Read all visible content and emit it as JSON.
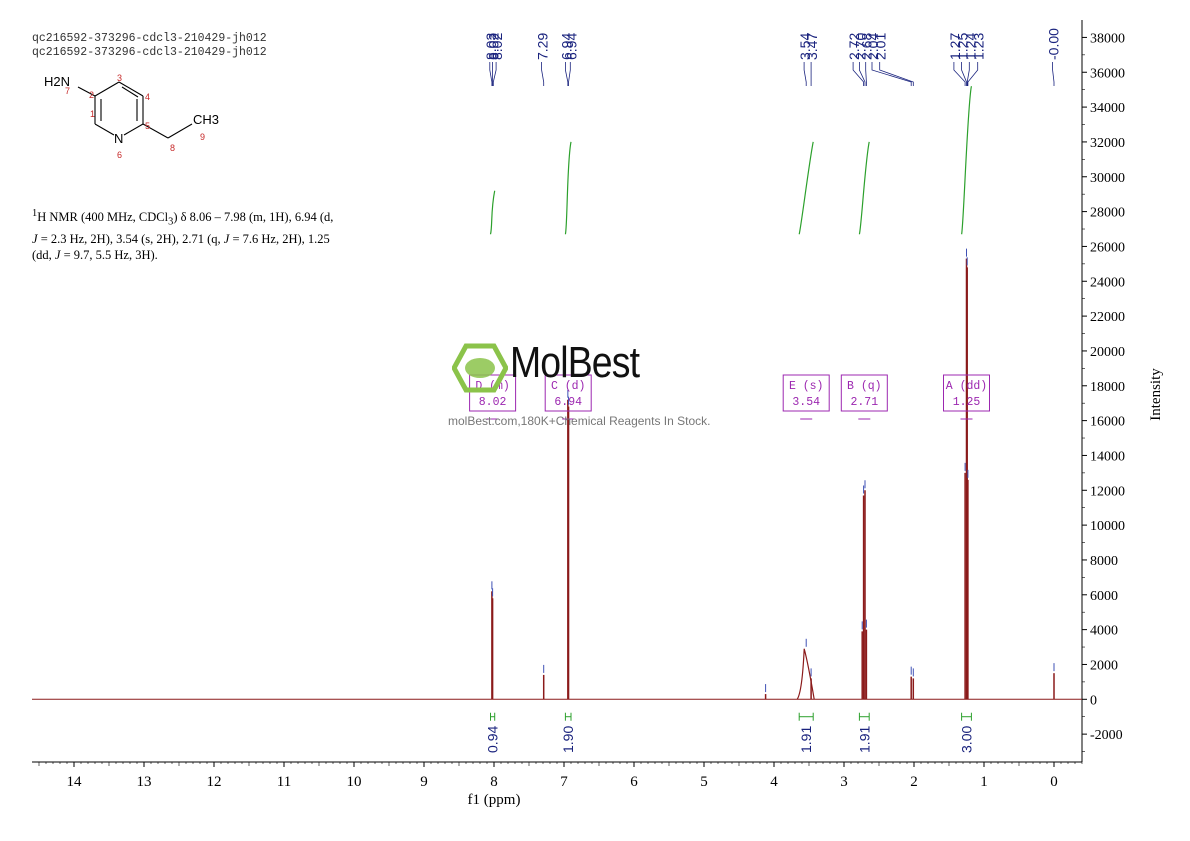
{
  "header": {
    "line1": "qc216592-373296-cdcl3-210429-jh012",
    "line2": "qc216592-373296-cdcl3-210429-jh012"
  },
  "structure": {
    "group": "H2N",
    "methyl": "CH3",
    "ring_n": "N",
    "atom_numbers": [
      "1",
      "2",
      "3",
      "4",
      "5",
      "6",
      "7",
      "8",
      "9"
    ]
  },
  "description": {
    "line1_pre": "H NMR (400 MHz, CDCl",
    "line1_sup": "1",
    "line1_sub": "3",
    "line1_post": ") δ 8.06 – 7.98 (m, 1H), 6.94 (d,",
    "line2_j": "J",
    "line2": " = 2.3 Hz, 2H), 3.54 (s, 2H), 2.71 (q, ",
    "line2_j2": "J",
    "line2_b": " = 7.6 Hz, 2H), 1.25",
    "line3_a": "(dd, ",
    "line3_j": "J",
    "line3_b": " = 9.7, 5.5 Hz, 3H)."
  },
  "watermark": {
    "brand": "MolBest",
    "tagline": "molBest.com,180K+Chemical Reagents In Stock."
  },
  "colors": {
    "spectrum": "#8b1a1a",
    "integral": "#2ca02c",
    "peak_label": "#1a237e",
    "multiplet_box": "#9c27b0",
    "logo_green": "#8bc34a"
  },
  "chart_data": {
    "type": "line",
    "xlabel": "f1 (ppm)",
    "ylabel": "Intensity",
    "xlim": [
      14.6,
      -0.4
    ],
    "ylim": [
      -3600,
      39000
    ],
    "x_ticks": [
      14,
      13,
      12,
      11,
      10,
      9,
      8,
      7,
      6,
      5,
      4,
      3,
      2,
      1,
      0
    ],
    "y_ticks": [
      -2000,
      0,
      2000,
      4000,
      6000,
      8000,
      10000,
      12000,
      14000,
      16000,
      18000,
      20000,
      22000,
      24000,
      26000,
      28000,
      30000,
      32000,
      34000,
      36000,
      38000
    ],
    "peaks": [
      {
        "x": 8.03,
        "y": 6200
      },
      {
        "x": 8.02,
        "y": 5800
      },
      {
        "x": 7.29,
        "y": 1400
      },
      {
        "x": 6.945,
        "y": 17200
      },
      {
        "x": 6.935,
        "y": 16800
      },
      {
        "x": 4.12,
        "y": 300
      },
      {
        "x": 3.54,
        "y": 2900
      },
      {
        "x": 3.47,
        "y": 1200
      },
      {
        "x": 2.72,
        "y": 11700
      },
      {
        "x": 2.7,
        "y": 12000
      },
      {
        "x": 2.68,
        "y": 4000
      },
      {
        "x": 2.74,
        "y": 3900
      },
      {
        "x": 2.04,
        "y": 1300
      },
      {
        "x": 2.01,
        "y": 1200
      },
      {
        "x": 1.27,
        "y": 13000
      },
      {
        "x": 1.25,
        "y": 25300
      },
      {
        "x": 1.24,
        "y": 24800
      },
      {
        "x": 1.23,
        "y": 12600
      },
      {
        "x": 0.0,
        "y": 1500
      }
    ],
    "peak_labels": [
      {
        "group": [
          {
            "text": "8.03",
            "x": 8.03
          },
          {
            "text": "8.02",
            "x": 8.02
          },
          {
            "text": "8.02",
            "x": 8.01
          }
        ],
        "label_x": [
          8.06,
          8.02,
          7.97
        ]
      },
      {
        "group": [
          {
            "text": "7.29",
            "x": 7.29
          }
        ],
        "label_x": [
          7.32
        ]
      },
      {
        "group": [
          {
            "text": "6.94",
            "x": 6.945
          },
          {
            "text": "6.94",
            "x": 6.935
          }
        ],
        "label_x": [
          6.98,
          6.91
        ]
      },
      {
        "group": [
          {
            "text": "3.54",
            "x": 3.54
          },
          {
            "text": "3.47",
            "x": 3.47
          }
        ],
        "label_x": [
          3.57,
          3.47
        ]
      },
      {
        "group": [
          {
            "text": "2.72",
            "x": 2.72
          },
          {
            "text": "2.70",
            "x": 2.7
          },
          {
            "text": "2.68",
            "x": 2.68
          },
          {
            "text": "2.04",
            "x": 2.04
          },
          {
            "text": "2.01",
            "x": 2.01
          }
        ],
        "label_x": [
          2.87,
          2.78,
          2.69,
          2.6,
          2.49
        ]
      },
      {
        "group": [
          {
            "text": "1.27",
            "x": 1.27
          },
          {
            "text": "1.25",
            "x": 1.25
          },
          {
            "text": "1.24",
            "x": 1.24
          },
          {
            "text": "1.23",
            "x": 1.23
          }
        ],
        "label_x": [
          1.43,
          1.32,
          1.21,
          1.09
        ]
      },
      {
        "group": [
          {
            "text": "-0.00",
            "x": 0.0
          }
        ],
        "label_x": [
          0.02
        ]
      }
    ],
    "integrals": [
      {
        "x": 8.02,
        "from": 8.05,
        "to": 7.99,
        "value": "0.94",
        "curve_y": [
          26700,
          29200
        ]
      },
      {
        "x": 6.94,
        "from": 6.98,
        "to": 6.9,
        "value": "1.90",
        "curve_y": [
          26700,
          32000
        ]
      },
      {
        "x": 3.54,
        "from": 3.64,
        "to": 3.44,
        "value": "1.91",
        "curve_y": [
          26700,
          32000
        ]
      },
      {
        "x": 2.71,
        "from": 2.78,
        "to": 2.64,
        "value": "1.91",
        "curve_y": [
          26700,
          32000
        ]
      },
      {
        "x": 1.25,
        "from": 1.32,
        "to": 1.18,
        "value": "3.00",
        "curve_y": [
          26700,
          35200
        ]
      }
    ],
    "multiplets": [
      {
        "x": 8.02,
        "name": "D (m)",
        "value": "8.02"
      },
      {
        "x": 6.94,
        "name": "C (d)",
        "value": "6.94"
      },
      {
        "x": 3.54,
        "name": "E (s)",
        "value": "3.54"
      },
      {
        "x": 2.71,
        "name": "B (q)",
        "value": "2.71"
      },
      {
        "x": 1.25,
        "name": "A (dd)",
        "value": "1.25"
      }
    ]
  }
}
